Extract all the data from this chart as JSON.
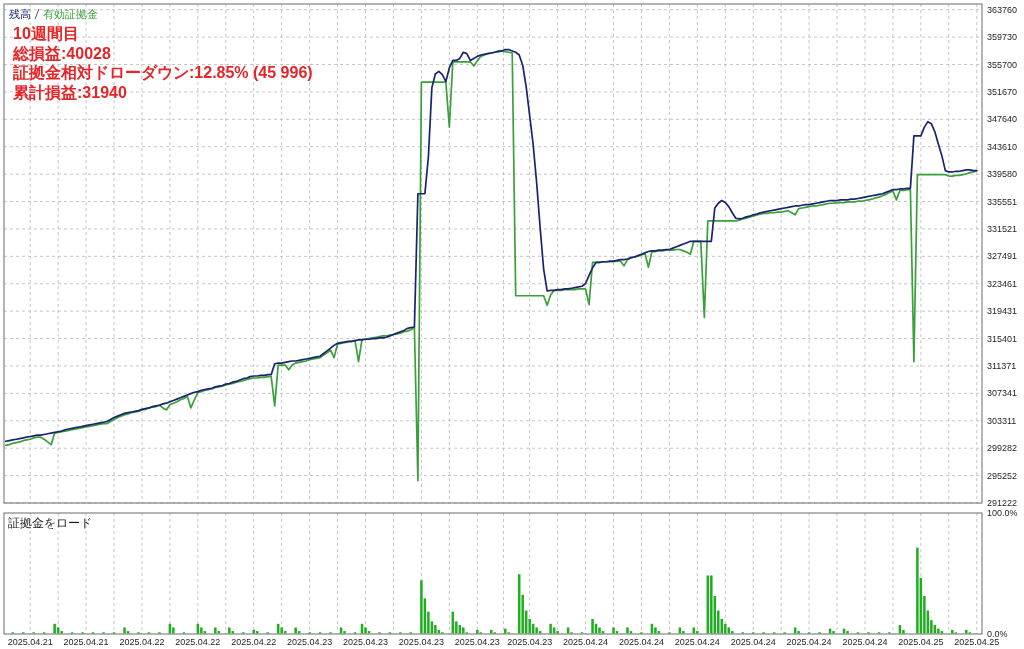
{
  "chart_data": [
    {
      "type": "line",
      "title": "10週間目",
      "annotations": [
        "総損益:40028",
        "証拠金相対ドローダウン:12.85% (45 996)",
        "累計損益:31940"
      ],
      "categories": [
        null,
        null,
        null,
        null,
        null,
        null,
        null,
        "2025.04.21",
        null,
        null,
        null,
        null,
        null,
        null,
        null,
        null,
        null,
        null,
        null,
        null,
        null,
        null,
        null,
        "2025.04.21",
        null,
        null,
        null,
        null,
        null,
        null,
        null,
        null,
        null,
        null,
        null,
        null,
        null,
        null,
        null,
        "2025.04.22",
        null,
        null,
        null,
        null,
        null,
        null,
        null,
        null,
        null,
        null,
        null,
        null,
        null,
        null,
        null,
        "2025.04.22",
        null,
        null,
        null,
        null,
        null,
        null,
        null,
        null,
        null,
        null,
        null,
        null,
        null,
        null,
        null,
        "2025.04.22",
        null,
        null,
        null,
        null,
        null,
        null,
        null,
        null,
        null,
        null,
        null,
        null,
        null,
        null,
        null,
        "2025.04.23",
        null,
        null,
        null,
        null,
        null,
        null,
        null,
        null,
        null,
        null,
        null,
        null,
        null,
        null,
        null,
        "2025.04.23",
        null,
        null,
        null,
        null,
        null,
        null,
        null,
        null,
        null,
        null,
        null,
        null,
        null,
        null,
        null,
        "2025.04.23",
        null,
        null,
        null,
        null,
        null,
        null,
        null,
        null,
        null,
        null,
        null,
        null,
        null,
        null,
        null,
        "2025.04.23",
        null,
        null,
        null,
        null,
        null,
        null,
        null,
        null,
        null,
        null,
        null,
        null,
        null,
        null,
        "2025.04.23",
        null,
        null,
        null,
        null,
        null,
        null,
        null,
        null,
        null,
        null,
        null,
        null,
        null,
        null,
        null,
        "2025.04.24",
        null,
        null,
        null,
        null,
        null,
        null,
        null,
        null,
        null,
        null,
        null,
        null,
        null,
        null,
        null,
        "2025.04.24",
        null,
        null,
        null,
        null,
        null,
        null,
        null,
        null,
        null,
        null,
        null,
        null,
        null,
        null,
        null,
        "2025.04.24",
        null,
        null,
        null,
        null,
        null,
        null,
        null,
        null,
        null,
        null,
        null,
        null,
        null,
        null,
        null,
        "2025.04.24",
        null,
        null,
        null,
        null,
        null,
        null,
        null,
        null,
        null,
        null,
        null,
        null,
        null,
        null,
        null,
        "2025.04.24",
        null,
        null,
        null,
        null,
        null,
        null,
        null,
        null,
        null,
        null,
        null,
        null,
        null,
        null,
        null,
        "2025.04.24",
        null,
        null,
        null,
        null,
        null,
        null,
        null,
        null,
        null,
        null,
        null,
        null,
        null,
        null,
        null,
        "2025.04.25",
        null,
        null,
        null,
        null,
        null,
        null,
        null,
        null,
        null,
        null,
        null,
        null,
        null,
        null,
        null,
        "2025.04.25",
        null
      ],
      "series": [
        {
          "name": "残高",
          "color": "#1b2370",
          "values": [
            300300,
            300400,
            300500,
            300600,
            300700,
            300800,
            300900,
            301000,
            301100,
            301200,
            301200,
            301300,
            301400,
            301500,
            301600,
            301700,
            301800,
            302000,
            302100,
            302200,
            302300,
            302400,
            302500,
            302600,
            302700,
            302800,
            302900,
            303000,
            303100,
            303200,
            303500,
            303800,
            304000,
            304200,
            304400,
            304500,
            304600,
            304700,
            304800,
            305000,
            305100,
            305200,
            305400,
            305500,
            305600,
            305800,
            305900,
            306100,
            306300,
            306500,
            306700,
            306900,
            307100,
            307300,
            307500,
            307600,
            307800,
            307900,
            308000,
            308100,
            308300,
            308400,
            308500,
            308700,
            308800,
            309000,
            309100,
            309300,
            309500,
            309600,
            309800,
            309900,
            309900,
            310000,
            310000,
            310100,
            310100,
            311700,
            311800,
            311800,
            311900,
            312000,
            312100,
            312100,
            312200,
            312300,
            312400,
            312500,
            312600,
            312700,
            312800,
            313200,
            313600,
            314000,
            314400,
            314700,
            314800,
            314900,
            315000,
            315000,
            315100,
            315200,
            315200,
            315300,
            315300,
            315400,
            315400,
            315500,
            315500,
            315600,
            315800,
            316000,
            316200,
            316400,
            316600,
            316900,
            317000,
            317100,
            336700,
            336700,
            336700,
            342100,
            352300,
            354300,
            354700,
            354200,
            353200,
            355200,
            356300,
            356300,
            356600,
            357500,
            357300,
            356300,
            356600,
            356900,
            357100,
            357200,
            357300,
            357400,
            357500,
            357600,
            357700,
            357900,
            357900,
            357700,
            357500,
            357100,
            355600,
            352400,
            348200,
            343900,
            338300,
            331700,
            325600,
            322400,
            322500,
            322500,
            322600,
            322600,
            322700,
            322700,
            322800,
            322900,
            323000,
            323100,
            323500,
            324700,
            325800,
            326600,
            326600,
            326700,
            326700,
            326800,
            326800,
            326900,
            327000,
            327000,
            327100,
            327300,
            327400,
            327600,
            327800,
            328000,
            328200,
            328300,
            328300,
            328400,
            328400,
            328500,
            328500,
            328700,
            328900,
            329100,
            329300,
            329500,
            329700,
            329700,
            329700,
            329700,
            329700,
            329700,
            329700,
            334600,
            335300,
            335700,
            335400,
            334800,
            333900,
            333100,
            333000,
            333100,
            333300,
            333400,
            333600,
            333700,
            333900,
            334000,
            334100,
            334200,
            334300,
            334400,
            334500,
            334600,
            334700,
            334800,
            334900,
            334900,
            335000,
            335100,
            335100,
            335200,
            335300,
            335400,
            335500,
            335600,
            335700,
            335700,
            335700,
            335800,
            335800,
            335800,
            335900,
            335900,
            336000,
            336100,
            336200,
            336300,
            336400,
            336500,
            336600,
            336700,
            336900,
            337100,
            337300,
            337300,
            337400,
            337400,
            337500,
            337500,
            345200,
            345200,
            345200,
            346500,
            347300,
            347000,
            345800,
            344000,
            342300,
            340100,
            339900,
            339900,
            340000,
            340000,
            340100,
            340200,
            340200,
            340100,
            340100,
            null
          ]
        },
        {
          "name": "有効証拠金",
          "color": "#3aa03a",
          "values": [
            299700,
            299800,
            300000,
            300100,
            300200,
            300400,
            300500,
            300600,
            300800,
            300900,
            300900,
            300600,
            300200,
            299800,
            301500,
            301600,
            301700,
            301800,
            301900,
            302000,
            302100,
            302200,
            302300,
            302400,
            302500,
            302600,
            302700,
            302800,
            302900,
            302900,
            303200,
            303500,
            303800,
            304000,
            304200,
            304300,
            304500,
            304600,
            304700,
            304900,
            305000,
            305200,
            305300,
            305400,
            305600,
            305200,
            304900,
            305700,
            305900,
            306100,
            306400,
            306600,
            306900,
            305200,
            306400,
            307500,
            307600,
            307800,
            307900,
            308000,
            308200,
            308300,
            308400,
            308600,
            308700,
            308800,
            309000,
            309100,
            309200,
            309400,
            309500,
            309600,
            309600,
            309700,
            309700,
            309800,
            309800,
            305500,
            311500,
            311500,
            311500,
            310800,
            311500,
            311800,
            311900,
            312000,
            312100,
            312300,
            312400,
            312500,
            312600,
            313000,
            313300,
            313700,
            312600,
            314600,
            314700,
            314800,
            314900,
            315000,
            315100,
            312000,
            315300,
            315300,
            315400,
            315500,
            315600,
            315700,
            315800,
            315800,
            315900,
            316000,
            316100,
            316200,
            316400,
            316500,
            316700,
            317000,
            294500,
            353100,
            353100,
            353100,
            353100,
            353100,
            353100,
            353100,
            353100,
            346500,
            356100,
            356100,
            356100,
            356100,
            356100,
            356100,
            355500,
            356200,
            356900,
            357100,
            357300,
            357400,
            357500,
            357700,
            357700,
            357600,
            357500,
            357400,
            321700,
            321700,
            321700,
            321700,
            321700,
            321700,
            321700,
            321700,
            321700,
            320300,
            321800,
            322500,
            322500,
            322500,
            322600,
            322600,
            322600,
            322600,
            322700,
            322700,
            322700,
            320400,
            326600,
            326600,
            326600,
            326700,
            326700,
            326700,
            326700,
            326800,
            326800,
            326100,
            327000,
            327300,
            327400,
            327500,
            327700,
            327900,
            325900,
            328200,
            328200,
            328300,
            328300,
            328400,
            328400,
            328400,
            328500,
            328500,
            328300,
            328100,
            327800,
            329700,
            329700,
            329700,
            318500,
            332700,
            332700,
            332700,
            332700,
            332700,
            332700,
            332700,
            332700,
            332700,
            332800,
            333000,
            333100,
            333300,
            333400,
            333600,
            333700,
            333800,
            333800,
            333900,
            333900,
            334000,
            334000,
            334100,
            334200,
            333900,
            333600,
            334500,
            334600,
            334700,
            334800,
            334900,
            334900,
            335000,
            335100,
            335200,
            335300,
            335300,
            335400,
            335400,
            335400,
            335500,
            335500,
            335500,
            335600,
            335600,
            335700,
            335800,
            335900,
            336100,
            336200,
            336400,
            336600,
            336900,
            337100,
            335800,
            337200,
            337200,
            337300,
            337300,
            312000,
            339500,
            339500,
            339500,
            339500,
            339500,
            339500,
            339500,
            339500,
            339500,
            339300,
            339300,
            339400,
            339400,
            339500,
            339600,
            339800,
            339900,
            340100,
            null
          ]
        }
      ],
      "ylim": [
        291222,
        364600
      ],
      "yticks": [
        363760,
        359730,
        355700,
        351670,
        347640,
        343610,
        339580,
        335551,
        331521,
        327491,
        323461,
        319431,
        315401,
        311371,
        307341,
        303311,
        299282,
        295252,
        291222
      ],
      "grid": true,
      "legend": "top left",
      "tick_labels": "y"
    },
    {
      "type": "bar",
      "title": "証拠金をロード",
      "color": "#1fae1f",
      "categories": [
        null,
        null,
        null,
        null,
        null,
        null,
        null,
        "2025.04.21",
        null,
        null,
        null,
        null,
        null,
        null,
        null,
        null,
        null,
        null,
        null,
        null,
        null,
        null,
        null,
        "2025.04.21",
        null,
        null,
        null,
        null,
        null,
        null,
        null,
        null,
        null,
        null,
        null,
        null,
        null,
        null,
        null,
        "2025.04.22",
        null,
        null,
        null,
        null,
        null,
        null,
        null,
        null,
        null,
        null,
        null,
        null,
        null,
        null,
        null,
        "2025.04.22",
        null,
        null,
        null,
        null,
        null,
        null,
        null,
        null,
        null,
        null,
        null,
        null,
        null,
        null,
        null,
        "2025.04.22",
        null,
        null,
        null,
        null,
        null,
        null,
        null,
        null,
        null,
        null,
        null,
        null,
        null,
        null,
        null,
        "2025.04.23",
        null,
        null,
        null,
        null,
        null,
        null,
        null,
        null,
        null,
        null,
        null,
        null,
        null,
        null,
        null,
        "2025.04.23",
        null,
        null,
        null,
        null,
        null,
        null,
        null,
        null,
        null,
        null,
        null,
        null,
        null,
        null,
        null,
        "2025.04.23",
        null,
        null,
        null,
        null,
        null,
        null,
        null,
        null,
        null,
        null,
        null,
        null,
        null,
        null,
        null,
        "2025.04.23",
        null,
        null,
        null,
        null,
        null,
        null,
        null,
        null,
        null,
        null,
        null,
        null,
        null,
        null,
        "2025.04.23",
        null,
        null,
        null,
        null,
        null,
        null,
        null,
        null,
        null,
        null,
        null,
        null,
        null,
        null,
        null,
        "2025.04.24",
        null,
        null,
        null,
        null,
        null,
        null,
        null,
        null,
        null,
        null,
        null,
        null,
        null,
        null,
        null,
        "2025.04.24",
        null,
        null,
        null,
        null,
        null,
        null,
        null,
        null,
        null,
        null,
        null,
        null,
        null,
        null,
        null,
        "2025.04.24",
        null,
        null,
        null,
        null,
        null,
        null,
        null,
        null,
        null,
        null,
        null,
        null,
        null,
        null,
        null,
        "2025.04.24",
        null,
        null,
        null,
        null,
        null,
        null,
        null,
        null,
        null,
        null,
        null,
        null,
        null,
        null,
        null,
        "2025.04.24",
        null,
        null,
        null,
        null,
        null,
        null,
        null,
        null,
        null,
        null,
        null,
        null,
        null,
        null,
        null,
        "2025.04.24",
        null,
        null,
        null,
        null,
        null,
        null,
        null,
        null,
        null,
        null,
        null,
        null,
        null,
        null,
        null,
        "2025.04.25",
        null,
        null,
        null,
        null,
        null,
        null,
        null,
        null,
        null,
        null,
        null,
        null,
        null,
        null,
        null,
        "2025.04.25",
        null
      ],
      "values": [
        null,
        null,
        1,
        null,
        null,
        1,
        null,
        null,
        1,
        null,
        null,
        1,
        null,
        null,
        8,
        5,
        2,
        null,
        null,
        1,
        null,
        null,
        1,
        null,
        null,
        1,
        null,
        null,
        1,
        null,
        null,
        1,
        null,
        null,
        5,
        2,
        null,
        null,
        1,
        null,
        null,
        1,
        null,
        null,
        1,
        null,
        null,
        8,
        5,
        null,
        null,
        1,
        null,
        null,
        null,
        8,
        5,
        2,
        null,
        null,
        5,
        2,
        null,
        null,
        5,
        2,
        null,
        null,
        1,
        null,
        null,
        3,
        2,
        null,
        null,
        1,
        null,
        null,
        8,
        5,
        2,
        null,
        null,
        5,
        2,
        null,
        null,
        1,
        null,
        null,
        1,
        null,
        null,
        1,
        null,
        null,
        5,
        2,
        null,
        null,
        1,
        null,
        8,
        5,
        2,
        null,
        null,
        1,
        null,
        null,
        1,
        null,
        null,
        1,
        null,
        null,
        1,
        null,
        null,
        44,
        29,
        18,
        10,
        7,
        3,
        1,
        null,
        null,
        18,
        10,
        7,
        5,
        1,
        null,
        null,
        3,
        1,
        null,
        null,
        3,
        1,
        null,
        null,
        4,
        1,
        null,
        null,
        49,
        32,
        19,
        12,
        8,
        5,
        2,
        null,
        null,
        8,
        5,
        2,
        null,
        null,
        5,
        1,
        null,
        null,
        1,
        null,
        null,
        12,
        8,
        5,
        2,
        null,
        null,
        5,
        2,
        null,
        null,
        5,
        2,
        null,
        null,
        1,
        null,
        null,
        8,
        5,
        2,
        null,
        null,
        1,
        null,
        null,
        5,
        2,
        null,
        null,
        5,
        2,
        null,
        null,
        48,
        48,
        31,
        19,
        12,
        8,
        5,
        2,
        null,
        null,
        1,
        null,
        null,
        1,
        null,
        null,
        1,
        null,
        null,
        1,
        null,
        null,
        1,
        null,
        null,
        5,
        2,
        null,
        null,
        1,
        null,
        null,
        1,
        null,
        null,
        4,
        2,
        null,
        null,
        4,
        2,
        null,
        null,
        1,
        null,
        null,
        1,
        null,
        null,
        1,
        null,
        null,
        1,
        null,
        null,
        7,
        3,
        null,
        null,
        null,
        71,
        46,
        31,
        19,
        11,
        7,
        4,
        2,
        null,
        null,
        3,
        1,
        null,
        null,
        3,
        1,
        null,
        null,
        null
      ],
      "ylim": [
        0,
        100
      ],
      "yticks": [
        {
          "value": 100,
          "label": "100.0%"
        },
        {
          "value": 0,
          "label": "0.0%"
        }
      ],
      "grid": "x"
    }
  ]
}
